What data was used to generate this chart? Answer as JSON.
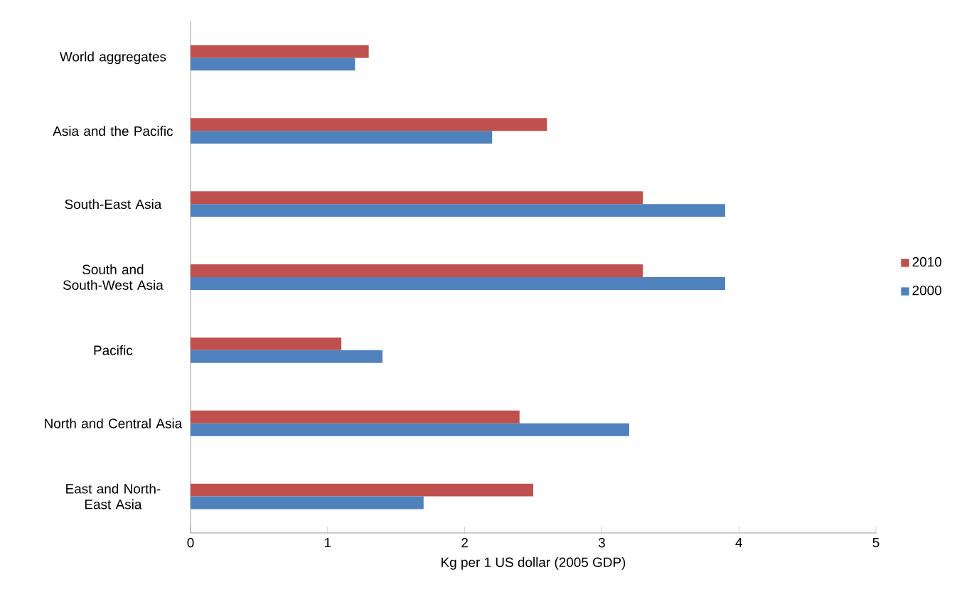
{
  "chart_data": {
    "type": "bar",
    "orientation": "horizontal",
    "xlabel": "Kg per 1 US dollar (2005 GDP)",
    "categories": [
      "World aggregates",
      "Asia and the Pacific",
      "South-East Asia",
      "South and South-West Asia",
      "Pacific",
      "North and Central Asia",
      "East and North-East Asia"
    ],
    "series": [
      {
        "name": "2010",
        "color": "#c0504d",
        "values": [
          1.3,
          2.6,
          3.3,
          3.3,
          1.1,
          2.4,
          2.5
        ]
      },
      {
        "name": "2000",
        "color": "#4f81bd",
        "values": [
          1.2,
          2.2,
          3.9,
          3.9,
          1.4,
          3.2,
          1.7
        ]
      }
    ],
    "xlim": [
      0,
      5
    ],
    "xticks": [
      0,
      1,
      2,
      3,
      4,
      5
    ],
    "legend": "right"
  }
}
